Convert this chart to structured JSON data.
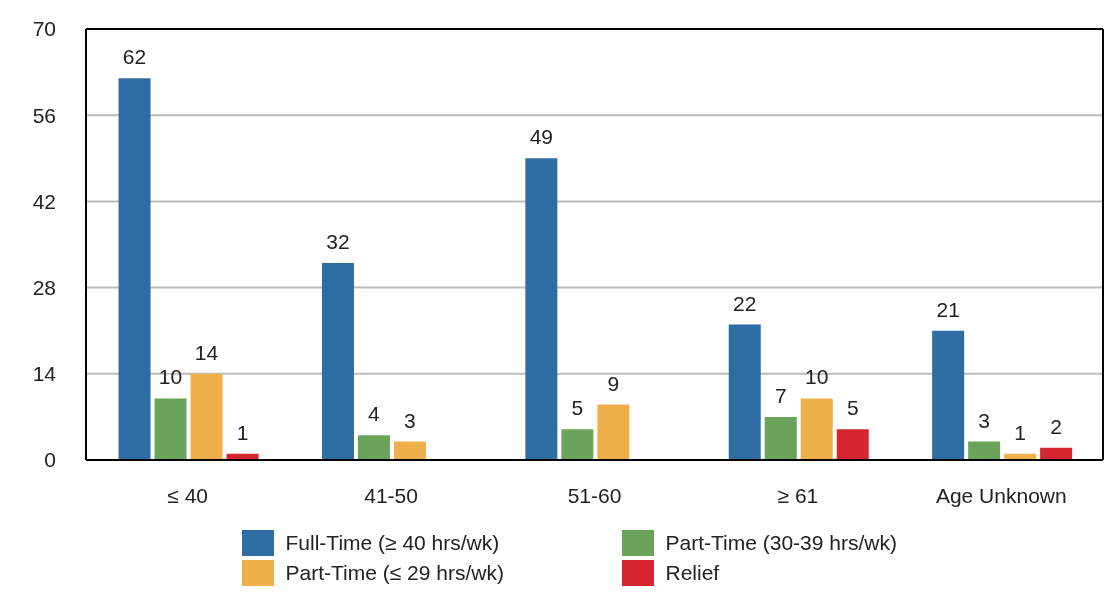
{
  "chart_data": {
    "type": "bar",
    "categories": [
      "≤ 40",
      "41-50",
      "51-60",
      "≥ 61",
      "Age Unknown"
    ],
    "series": [
      {
        "name": "Full-Time (≥ 40 hrs/wk)",
        "color": "#2e6da4",
        "values": [
          62,
          32,
          49,
          22,
          21
        ]
      },
      {
        "name": "Part-Time (30-39 hrs/wk)",
        "color": "#6aa45a",
        "values": [
          10,
          4,
          5,
          7,
          3
        ]
      },
      {
        "name": "Part-Time (≤ 29 hrs/wk)",
        "color": "#efb04c",
        "values": [
          14,
          3,
          9,
          10,
          1
        ]
      },
      {
        "name": "Relief",
        "color": "#d5252e",
        "values": [
          1,
          null,
          null,
          5,
          2
        ]
      }
    ],
    "ylim": [
      0,
      70
    ],
    "yticks": [
      0,
      14,
      28,
      42,
      56,
      70
    ],
    "grid": "y",
    "legend": "bottom",
    "data_labels": true
  }
}
